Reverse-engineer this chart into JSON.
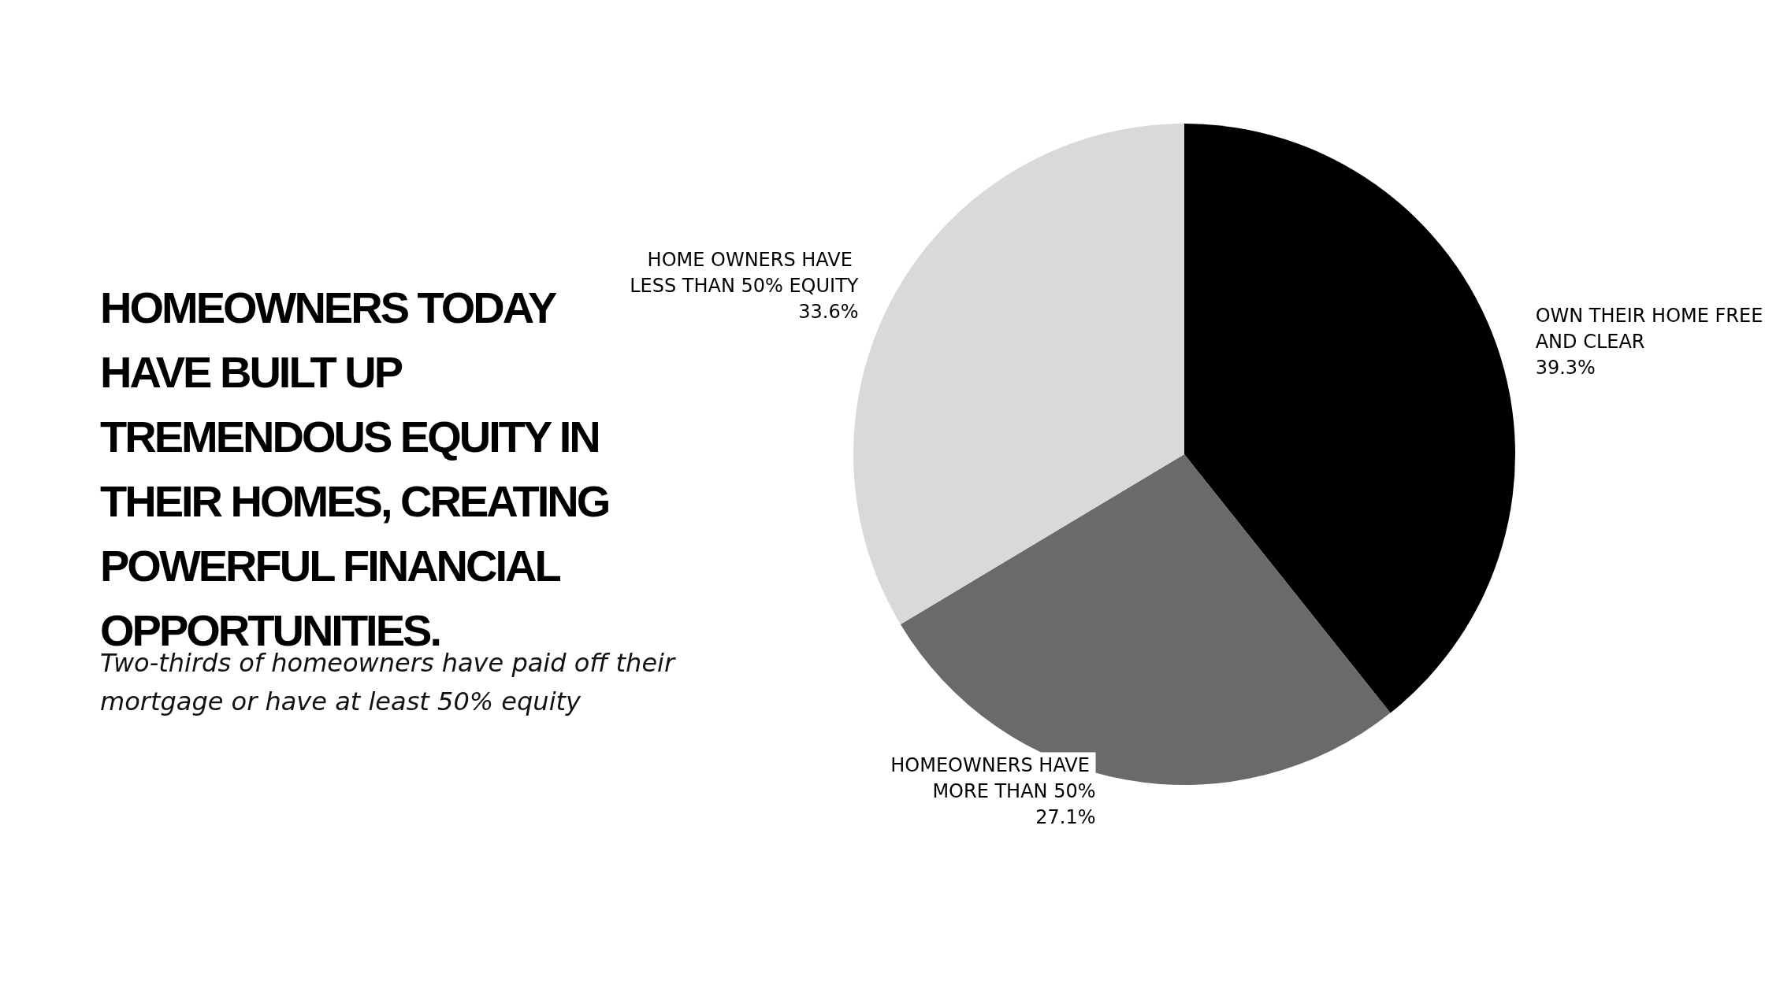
{
  "chart_data": {
    "type": "pie",
    "title": "HOMEOWNERS TODAY HAVE BUILT UP TREMENDOUS EQUITY IN THEIR HOMES, CREATING POWERFUL FINANCIAL OPPORTUNITIES.",
    "subtitle": "Two-thirds of homeowners have paid off their mortgage or have at least 50% equity",
    "categories": [
      "OWN THEIR HOME FREE AND CLEAR",
      "HOMEOWNERS HAVE MORE THAN 50%",
      "HOME OWNERS HAVE LESS THAN 50% EQUITY"
    ],
    "values": [
      39.3,
      27.1,
      33.6
    ],
    "colors": [
      "#000000",
      "#6b6a68",
      "#d9d9d9"
    ],
    "value_labels": [
      "39.3%",
      "27.1%",
      "33.6%"
    ]
  }
}
